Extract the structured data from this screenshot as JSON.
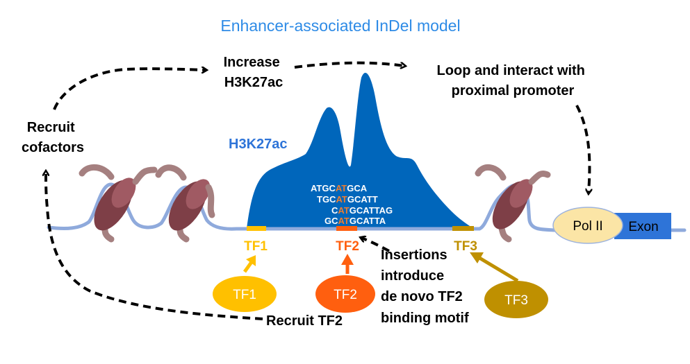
{
  "title": "Enhancer-associated InDel model",
  "labels": {
    "increase_h3k27ac": [
      "Increase",
      "H3K27ac"
    ],
    "loop": [
      "Loop and interact with",
      "proximal promoter"
    ],
    "recruit_cofactors": [
      "Recruit",
      "cofactors"
    ],
    "h3k27ac_peak": "H3K27ac",
    "recruit_tf2": "Recruit TF2",
    "insertions": [
      "Insertions",
      "introduce",
      "de novo TF2",
      "binding motif"
    ]
  },
  "sequences": [
    {
      "pre": "ATGC",
      "hl": "AT",
      "post": "GCA"
    },
    {
      "pre": "TGC",
      "hl": "AT",
      "post": "GCATT"
    },
    {
      "pre": "C",
      "hl": "AT",
      "post": "GCATTAG"
    },
    {
      "pre": "GC",
      "hl": "AT",
      "post": "GCATTA"
    }
  ],
  "sites": {
    "tf1": "TF1",
    "tf2": "TF2",
    "tf3": "TF3"
  },
  "factors": {
    "tf1": "TF1",
    "tf2": "TF2",
    "tf3": "TF3",
    "pol2": "Pol II"
  },
  "exon": "Exon",
  "colors": {
    "title": "#2E8BE6",
    "peak": "#0066BB",
    "dna": "#8FAADC",
    "tf1": "#FFC000",
    "tf2": "#FF5F0F",
    "tf3": "#BF9000",
    "pol2": "#FBE5A6",
    "exon": "#2E74D8",
    "nucleosome": "#7E3F47",
    "tail": "#A58080",
    "highlight": "#ED7D31"
  }
}
